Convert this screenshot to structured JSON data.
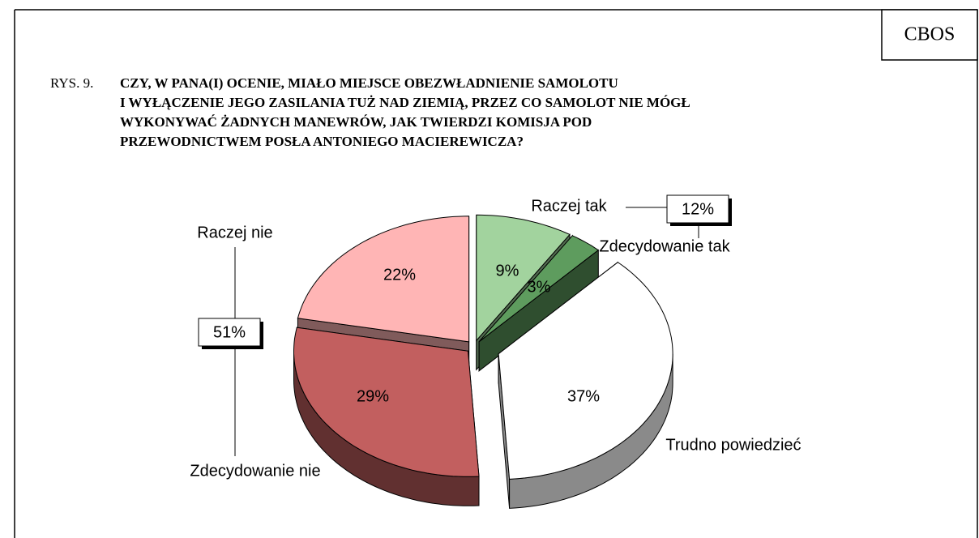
{
  "chart_data": {
    "type": "pie3d",
    "brand": "CBOS",
    "figure_label": "RYS. 9.",
    "title_lines": [
      "CZY, W PANA(I) OCENIE, MIAŁO MIEJSCE OBEZWŁADNIENIE SAMOLOTU",
      "I WYŁĄCZENIE JEGO ZASILANIA TUŻ NAD ZIEMIĄ, PRZEZ CO SAMOLOT NIE MÓGŁ",
      "WYKONYWAĆ ŻADNYCH MANEWRÓW, JAK TWIERDZI KOMISJA POD",
      "PRZEWODNICTWEM POSŁA ANTONIEGO MACIEREWICZA?"
    ],
    "categories": [
      "Raczej tak",
      "Zdecydowanie tak",
      "Trudno powiedzieć",
      "Zdecydowanie nie",
      "Raczej nie"
    ],
    "values": [
      9,
      3,
      37,
      29,
      22
    ],
    "value_labels": [
      "9%",
      "3%",
      "37%",
      "29%",
      "22%"
    ],
    "colors": [
      "#a2d39e",
      "#5e9c5e",
      "#ffffff",
      "#c25f5f",
      "#ffb5b5"
    ],
    "groups": [
      {
        "value": 12,
        "label": "12%"
      },
      {
        "value": 51,
        "label": "51%"
      }
    ]
  }
}
